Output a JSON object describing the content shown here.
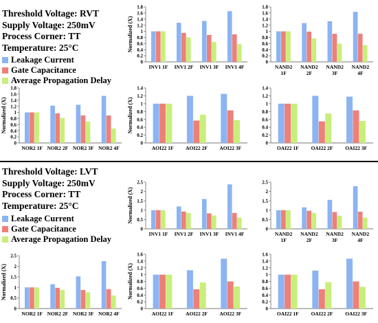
{
  "sections": [
    {
      "name": "rvt",
      "info": [
        "Threshold Voltage: RVT",
        "Supply Voltage: 250mV",
        "Process Corner: TT",
        "Temperature: 25°C"
      ]
    },
    {
      "name": "lvt",
      "info": [
        "Threshold Voltage: LVT",
        "Supply Voltage: 250mV",
        "Process Corner: TT",
        "Temperature: 25°C"
      ]
    }
  ],
  "legend": {
    "items": [
      "Leakage Current",
      "Gate Capacitance",
      "Average Propagation Delay"
    ],
    "colors": [
      "#8cb4f2",
      "#ee8078",
      "#c8ef7a"
    ]
  },
  "chart_data": [
    {
      "id": "rvt-inv1",
      "type": "bar",
      "ylabel": "Normalized (X)",
      "ylim": [
        0,
        1.8
      ],
      "yticks": [
        0,
        0.2,
        0.4,
        0.6,
        0.8,
        1,
        1.2,
        1.4,
        1.6,
        1.8
      ],
      "categories": [
        [
          "INV1 1F"
        ],
        [
          "INV1 2F"
        ],
        [
          "INV1 3F"
        ],
        [
          "INV1 4F"
        ]
      ],
      "series": [
        {
          "name": "Leakage Current",
          "values": [
            1,
            1.28,
            1.34,
            1.66
          ]
        },
        {
          "name": "Gate Capacitance",
          "values": [
            1,
            0.95,
            0.88,
            0.9
          ]
        },
        {
          "name": "Average Propagation Delay",
          "values": [
            1,
            0.8,
            0.65,
            0.58
          ]
        }
      ]
    },
    {
      "id": "rvt-nand2",
      "type": "bar",
      "ylabel": "",
      "ylim": [
        0,
        1.8
      ],
      "yticks": [
        0,
        0.2,
        0.4,
        0.6,
        0.8,
        1,
        1.2,
        1.4,
        1.6,
        1.8
      ],
      "categories": [
        [
          "NAND2",
          "1F"
        ],
        [
          "NAND2",
          "2F"
        ],
        [
          "NAND2",
          "3F"
        ],
        [
          "NAND2",
          "4F"
        ]
      ],
      "series": [
        {
          "name": "Leakage Current",
          "values": [
            1,
            1.27,
            1.33,
            1.64
          ]
        },
        {
          "name": "Gate Capacitance",
          "values": [
            1,
            0.99,
            0.92,
            0.92
          ]
        },
        {
          "name": "Average Propagation Delay",
          "values": [
            1,
            0.77,
            0.6,
            0.55
          ]
        }
      ]
    },
    {
      "id": "rvt-nor2",
      "type": "bar",
      "ylabel": "Normalized (X)",
      "ylim": [
        0,
        1.8
      ],
      "yticks": [
        0,
        0.2,
        0.4,
        0.6,
        0.8,
        1,
        1.2,
        1.4,
        1.6,
        1.8
      ],
      "categories": [
        [
          "NOR2 1F"
        ],
        [
          "NOR2 2F"
        ],
        [
          "NOR2 3F"
        ],
        [
          "NOR2 4F"
        ]
      ],
      "series": [
        {
          "name": "Leakage Current",
          "values": [
            1,
            1.22,
            1.25,
            1.54
          ]
        },
        {
          "name": "Gate Capacitance",
          "values": [
            1,
            0.97,
            0.9,
            0.9
          ]
        },
        {
          "name": "Average Propagation Delay",
          "values": [
            1,
            0.82,
            0.7,
            0.47
          ]
        }
      ]
    },
    {
      "id": "rvt-aoi22",
      "type": "bar",
      "ylabel": "Normalized (X)",
      "ylim": [
        0,
        1.4
      ],
      "yticks": [
        0,
        0.2,
        0.4,
        0.6,
        0.8,
        1,
        1.2,
        1.4
      ],
      "categories": [
        [
          "AOI22 1F"
        ],
        [
          "AOI22 2F"
        ],
        [
          "AOI22 3F"
        ]
      ],
      "series": [
        {
          "name": "Leakage Current",
          "values": [
            1,
            1.2,
            1.25
          ]
        },
        {
          "name": "Gate Capacitance",
          "values": [
            1,
            0.57,
            0.83
          ]
        },
        {
          "name": "Average Propagation Delay",
          "values": [
            1,
            0.72,
            0.58
          ]
        }
      ]
    },
    {
      "id": "rvt-oai22",
      "type": "bar",
      "ylabel": "",
      "ylim": [
        0,
        1.4
      ],
      "yticks": [
        0,
        0.2,
        0.4,
        0.6,
        0.8,
        1,
        1.2,
        1.4
      ],
      "categories": [
        [
          "OAI22 1F"
        ],
        [
          "OAI22 2F"
        ],
        [
          "OAI22 3F"
        ]
      ],
      "series": [
        {
          "name": "Leakage Current",
          "values": [
            1,
            1.2,
            1.18
          ]
        },
        {
          "name": "Gate Capacitance",
          "values": [
            1,
            0.55,
            0.83
          ]
        },
        {
          "name": "Average Propagation Delay",
          "values": [
            1,
            0.75,
            0.56
          ]
        }
      ]
    },
    {
      "id": "lvt-inv1",
      "type": "bar",
      "ylabel": "Normalized (X)",
      "ylim": [
        0,
        2.5
      ],
      "yticks": [
        0,
        0.5,
        1,
        1.5,
        2,
        2.5
      ],
      "categories": [
        [
          "INV1 1F"
        ],
        [
          "INV1 2F"
        ],
        [
          "INV1 3F"
        ],
        [
          "INV1 4F"
        ]
      ],
      "series": [
        {
          "name": "Leakage Current",
          "values": [
            1,
            1.2,
            1.6,
            2.38
          ]
        },
        {
          "name": "Gate Capacitance",
          "values": [
            1,
            0.93,
            0.83,
            0.85
          ]
        },
        {
          "name": "Average Propagation Delay",
          "values": [
            1,
            0.85,
            0.72,
            0.6
          ]
        }
      ]
    },
    {
      "id": "lvt-nand2",
      "type": "bar",
      "ylabel": "",
      "ylim": [
        0,
        2.5
      ],
      "yticks": [
        0,
        0.5,
        1,
        1.5,
        2,
        2.5
      ],
      "categories": [
        [
          "NAND2",
          "1F"
        ],
        [
          "NAND2",
          "2F"
        ],
        [
          "NAND2",
          "3F"
        ],
        [
          "NAND2",
          "4F"
        ]
      ],
      "series": [
        {
          "name": "Leakage Current",
          "values": [
            1,
            1.15,
            1.55,
            2.28
          ]
        },
        {
          "name": "Gate Capacitance",
          "values": [
            1,
            0.97,
            0.9,
            0.92
          ]
        },
        {
          "name": "Average Propagation Delay",
          "values": [
            1,
            0.85,
            0.7,
            0.6
          ]
        }
      ]
    },
    {
      "id": "lvt-nor2",
      "type": "bar",
      "ylabel": "Normalized (X)",
      "ylim": [
        0,
        2.5
      ],
      "yticks": [
        0,
        0.5,
        1,
        1.5,
        2,
        2.5
      ],
      "categories": [
        [
          "NOR2 1F"
        ],
        [
          "NOR2 2F"
        ],
        [
          "NOR2 3F"
        ],
        [
          "NOR2 4F"
        ]
      ],
      "series": [
        {
          "name": "Leakage Current",
          "values": [
            1,
            1.15,
            1.52,
            2.24
          ]
        },
        {
          "name": "Gate Capacitance",
          "values": [
            1,
            0.98,
            0.88,
            0.92
          ]
        },
        {
          "name": "Average Propagation Delay",
          "values": [
            1,
            0.88,
            0.77,
            0.62
          ]
        }
      ]
    },
    {
      "id": "lvt-aoi22",
      "type": "bar",
      "ylabel": "Normalized (X)",
      "ylim": [
        0,
        1.6
      ],
      "yticks": [
        0,
        0.2,
        0.4,
        0.6,
        0.8,
        1,
        1.2,
        1.4,
        1.6
      ],
      "categories": [
        [
          "AOI22 1F"
        ],
        [
          "AOI22 2F"
        ],
        [
          "AOI22 3F"
        ]
      ],
      "series": [
        {
          "name": "Leakage Current",
          "values": [
            1,
            1.13,
            1.47
          ]
        },
        {
          "name": "Gate Capacitance",
          "values": [
            1,
            0.57,
            0.8
          ]
        },
        {
          "name": "Average Propagation Delay",
          "values": [
            1,
            0.77,
            0.65
          ]
        }
      ]
    },
    {
      "id": "lvt-oai22",
      "type": "bar",
      "ylabel": "",
      "ylim": [
        0,
        1.6
      ],
      "yticks": [
        0,
        0.2,
        0.4,
        0.6,
        0.8,
        1,
        1.2,
        1.4,
        1.6
      ],
      "categories": [
        [
          "OAI22 1F"
        ],
        [
          "OAI22 2F"
        ],
        [
          "OAI22 3F"
        ]
      ],
      "series": [
        {
          "name": "Leakage Current",
          "values": [
            1,
            1.12,
            1.47
          ]
        },
        {
          "name": "Gate Capacitance",
          "values": [
            1,
            0.57,
            0.8
          ]
        },
        {
          "name": "Average Propagation Delay",
          "values": [
            1,
            0.78,
            0.64
          ]
        }
      ]
    }
  ]
}
